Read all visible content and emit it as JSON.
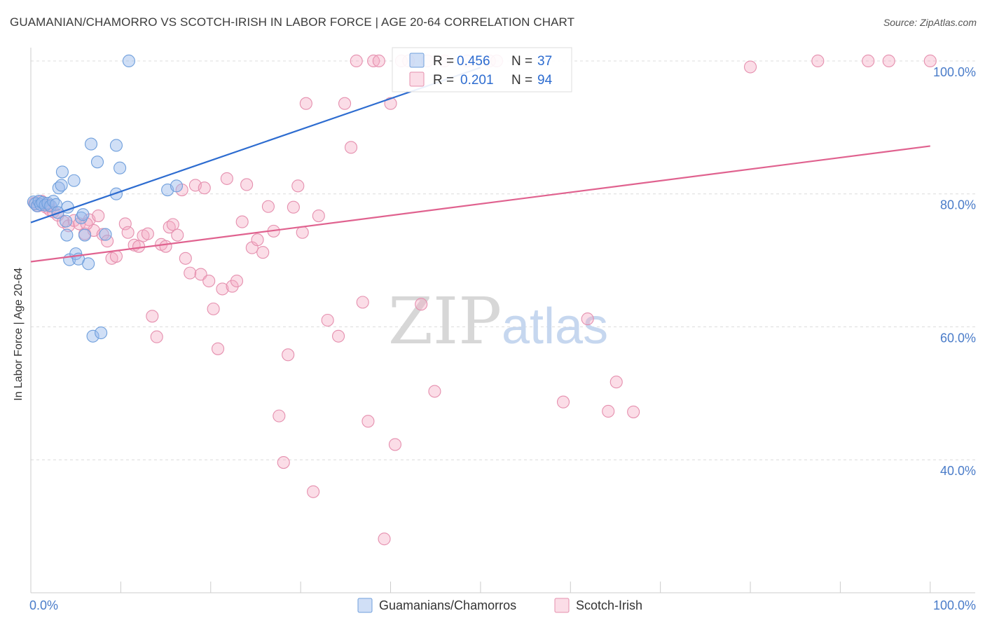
{
  "header": {
    "title": "GUAMANIAN/CHAMORRO VS SCOTCH-IRISH IN LABOR FORCE | AGE 20-64 CORRELATION CHART",
    "source": "Source: ZipAtlas.com"
  },
  "chart_data": {
    "type": "scatter",
    "title": "GUAMANIAN/CHAMORRO VS SCOTCH-IRISH IN LABOR FORCE | AGE 20-64 CORRELATION CHART",
    "xlabel": "",
    "ylabel": "In Labor Force | Age 20-64",
    "xlim": [
      0,
      105
    ],
    "ylim": [
      20,
      102
    ],
    "x_tick_labels": [
      {
        "value": 0,
        "label": "0.0%"
      },
      {
        "value": 100,
        "label": "100.0%"
      }
    ],
    "y_tick_labels": [
      {
        "value": 100,
        "label": "100.0%"
      },
      {
        "value": 80,
        "label": "80.0%"
      },
      {
        "value": 60,
        "label": "60.0%"
      },
      {
        "value": 40,
        "label": "40.0%"
      }
    ],
    "watermark": {
      "zip": "ZIP",
      "atlas": "atlas"
    },
    "legend": {
      "position": "top-center"
    },
    "series": [
      {
        "name": "Guamanians/Chamorros",
        "color": "#6f9fdc",
        "fill": "rgba(150,185,235,0.45)",
        "line_color": "#2d6cd0",
        "R": "0.456",
        "N": "37",
        "trend": {
          "x0": 0,
          "y0": 75.7,
          "x1": 50,
          "y1": 99.0
        },
        "points": [
          [
            0.3,
            78.8
          ],
          [
            0.5,
            78.5
          ],
          [
            0.7,
            78.2
          ],
          [
            0.9,
            78.9
          ],
          [
            1.1,
            78.4
          ],
          [
            1.3,
            78.7
          ],
          [
            1.6,
            78.3
          ],
          [
            1.9,
            78.6
          ],
          [
            2.2,
            78.2
          ],
          [
            2.5,
            78.9
          ],
          [
            2.8,
            78.4
          ],
          [
            3.1,
            80.9
          ],
          [
            3.4,
            81.3
          ],
          [
            3.5,
            83.3
          ],
          [
            3.9,
            75.9
          ],
          [
            4.0,
            73.8
          ],
          [
            4.1,
            78.0
          ],
          [
            4.3,
            70.1
          ],
          [
            4.8,
            82.0
          ],
          [
            5.0,
            71.0
          ],
          [
            5.3,
            70.2
          ],
          [
            5.6,
            76.4
          ],
          [
            6.0,
            73.8
          ],
          [
            6.4,
            69.5
          ],
          [
            6.7,
            87.5
          ],
          [
            6.9,
            58.6
          ],
          [
            7.4,
            84.8
          ],
          [
            7.8,
            59.1
          ],
          [
            8.3,
            73.9
          ],
          [
            9.5,
            87.3
          ],
          [
            9.5,
            80.0
          ],
          [
            9.9,
            83.9
          ],
          [
            10.9,
            100.0
          ],
          [
            15.2,
            80.6
          ],
          [
            16.2,
            81.2
          ],
          [
            3.0,
            77.2
          ],
          [
            5.8,
            76.9
          ]
        ]
      },
      {
        "name": "Scotch-Irish",
        "color": "#e58fae",
        "fill": "rgba(244,170,196,0.40)",
        "line_color": "#e0628f",
        "R": "0.201",
        "N": "94",
        "trend": {
          "x0": 0,
          "y0": 69.8,
          "x1": 100,
          "y1": 87.2
        },
        "points": [
          [
            0.4,
            78.6
          ],
          [
            0.8,
            78.2
          ],
          [
            1.2,
            78.9
          ],
          [
            1.7,
            78.0
          ],
          [
            2.1,
            77.6
          ],
          [
            2.5,
            77.3
          ],
          [
            3.0,
            76.8
          ],
          [
            3.6,
            75.8
          ],
          [
            4.2,
            75.2
          ],
          [
            4.8,
            76.0
          ],
          [
            5.4,
            75.5
          ],
          [
            6.0,
            74.0
          ],
          [
            6.5,
            76.1
          ],
          [
            7.0,
            74.5
          ],
          [
            7.5,
            76.7
          ],
          [
            8.0,
            73.9
          ],
          [
            8.5,
            72.9
          ],
          [
            9.0,
            70.3
          ],
          [
            9.5,
            70.6
          ],
          [
            10.5,
            75.5
          ],
          [
            10.8,
            74.2
          ],
          [
            11.5,
            72.3
          ],
          [
            12.0,
            72.1
          ],
          [
            12.5,
            73.7
          ],
          [
            13.0,
            74.0
          ],
          [
            13.5,
            61.6
          ],
          [
            14.0,
            58.5
          ],
          [
            14.5,
            72.4
          ],
          [
            15.0,
            72.1
          ],
          [
            15.4,
            75.0
          ],
          [
            15.8,
            75.4
          ],
          [
            16.3,
            73.8
          ],
          [
            16.8,
            80.6
          ],
          [
            17.2,
            70.3
          ],
          [
            17.7,
            68.1
          ],
          [
            18.3,
            81.3
          ],
          [
            18.9,
            67.9
          ],
          [
            19.3,
            80.9
          ],
          [
            19.8,
            66.9
          ],
          [
            20.3,
            62.7
          ],
          [
            20.8,
            56.7
          ],
          [
            21.3,
            65.7
          ],
          [
            21.8,
            82.3
          ],
          [
            22.4,
            66.1
          ],
          [
            22.9,
            66.9
          ],
          [
            23.5,
            75.8
          ],
          [
            24.0,
            81.4
          ],
          [
            24.6,
            71.9
          ],
          [
            25.2,
            73.1
          ],
          [
            25.8,
            71.2
          ],
          [
            26.4,
            78.1
          ],
          [
            27.0,
            74.4
          ],
          [
            27.6,
            46.6
          ],
          [
            28.1,
            39.6
          ],
          [
            28.6,
            55.8
          ],
          [
            29.2,
            78.0
          ],
          [
            29.7,
            81.2
          ],
          [
            30.2,
            74.2
          ],
          [
            30.6,
            93.6
          ],
          [
            31.4,
            35.2
          ],
          [
            32.0,
            76.7
          ],
          [
            33.0,
            61.0
          ],
          [
            34.2,
            58.6
          ],
          [
            34.9,
            93.6
          ],
          [
            35.6,
            87.0
          ],
          [
            36.2,
            100.0
          ],
          [
            36.9,
            63.7
          ],
          [
            37.5,
            45.8
          ],
          [
            38.1,
            100.0
          ],
          [
            38.7,
            100.0
          ],
          [
            39.3,
            28.1
          ],
          [
            40.0,
            93.6
          ],
          [
            40.5,
            42.3
          ],
          [
            41.2,
            100.0
          ],
          [
            42.0,
            100.0
          ],
          [
            43.4,
            63.4
          ],
          [
            44.1,
            100.0
          ],
          [
            44.9,
            50.3
          ],
          [
            46.0,
            100.0
          ],
          [
            48.5,
            100.0
          ],
          [
            51.0,
            100.0
          ],
          [
            51.8,
            100.0
          ],
          [
            59.2,
            48.7
          ],
          [
            61.9,
            61.2
          ],
          [
            64.2,
            47.3
          ],
          [
            65.1,
            51.7
          ],
          [
            67.0,
            47.2
          ],
          [
            80.0,
            99.1
          ],
          [
            87.5,
            100.0
          ],
          [
            93.1,
            100.0
          ],
          [
            95.4,
            100.0
          ],
          [
            100.0,
            100.0
          ],
          [
            2.0,
            78.3
          ],
          [
            6.2,
            75.5
          ]
        ]
      }
    ]
  },
  "colors": {
    "grid": "#dcdcdc",
    "axis": "#cccccc",
    "tick_label": "#4a7cc9",
    "title": "#3c3c3c"
  }
}
